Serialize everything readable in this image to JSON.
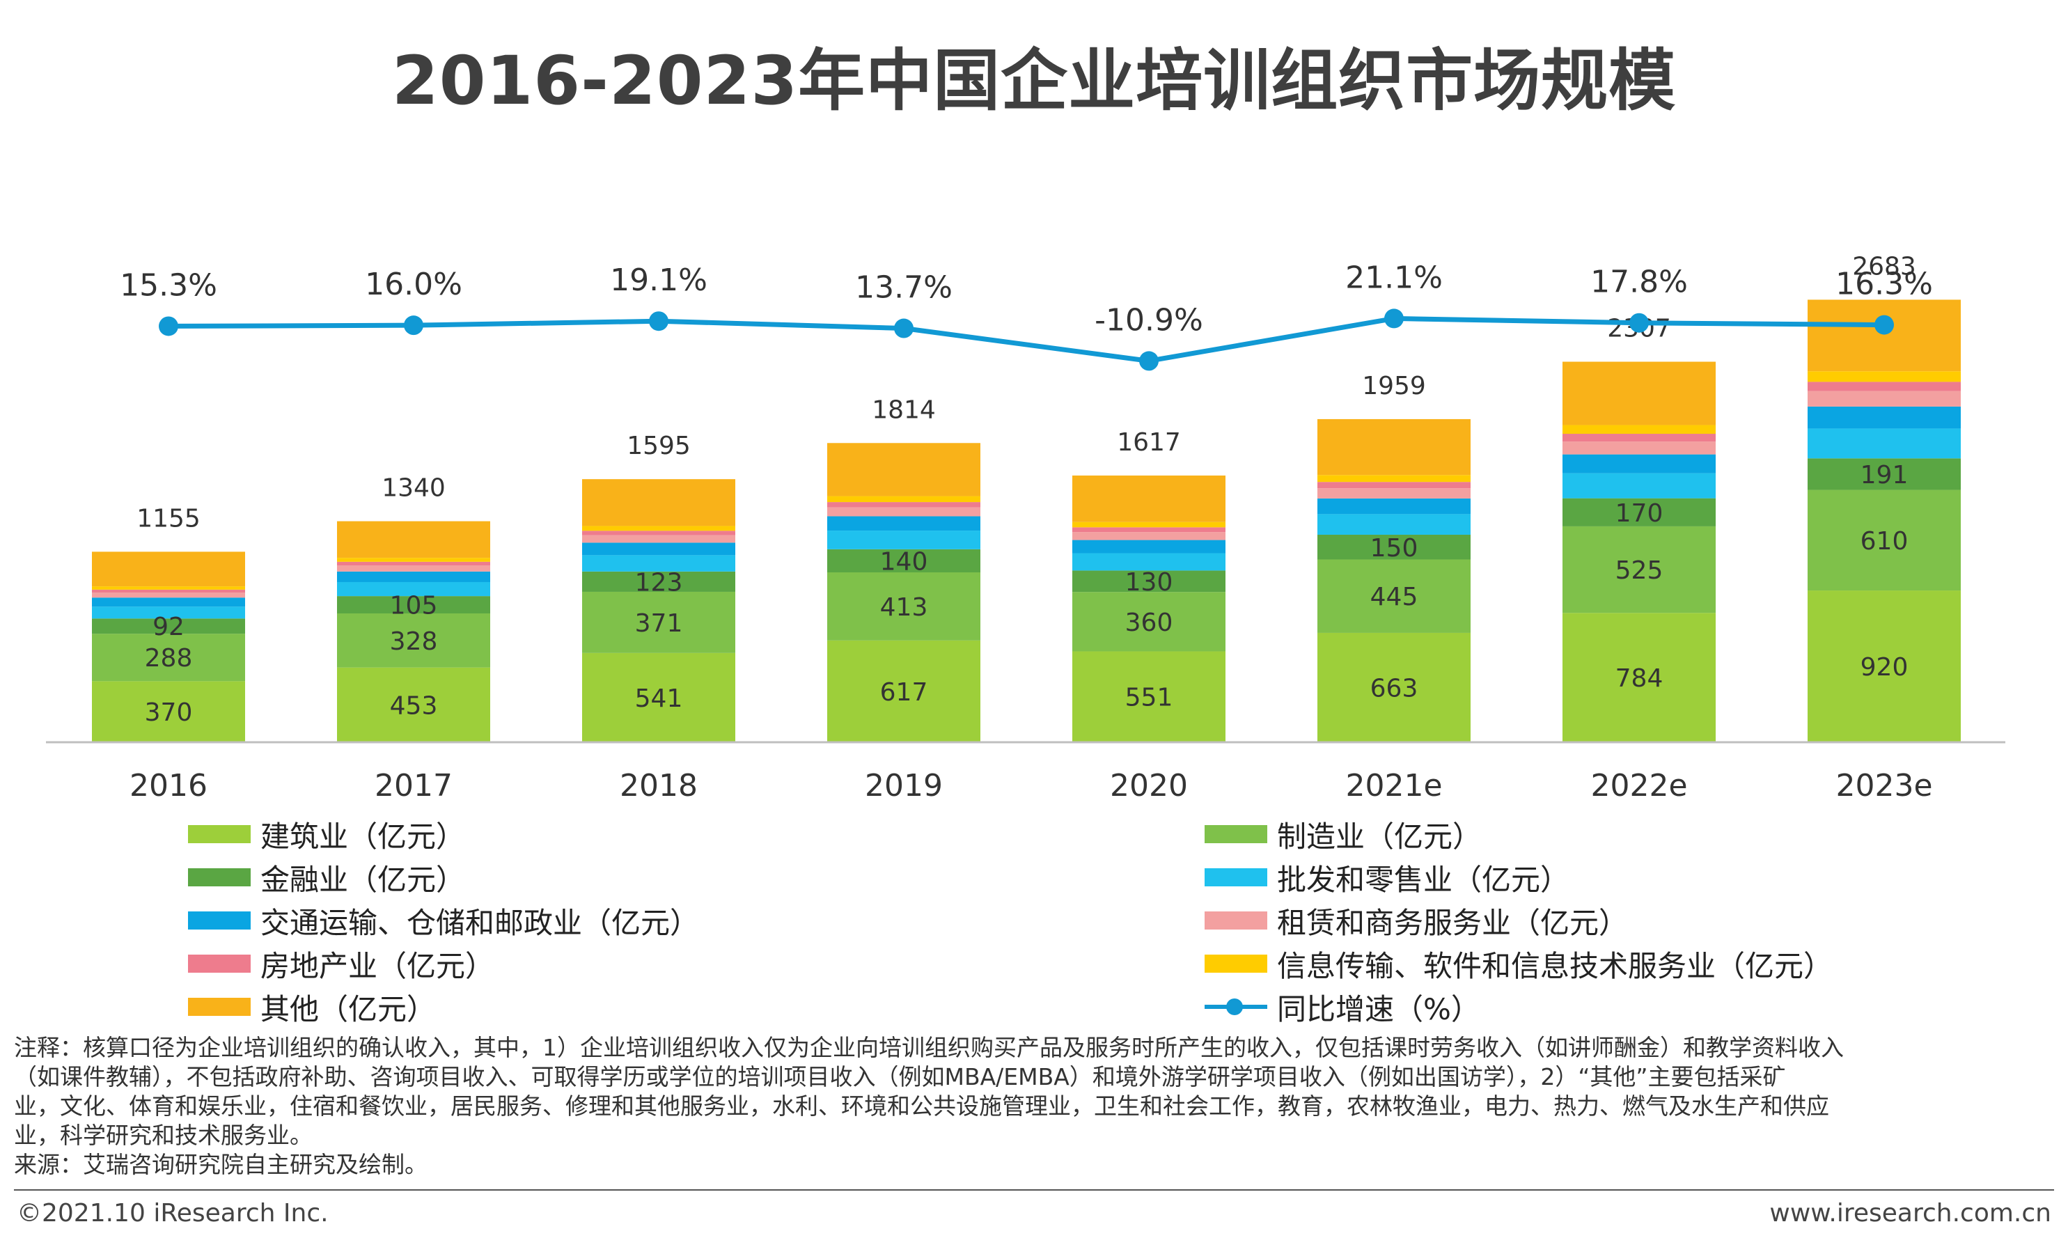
{
  "title": "2016-2023年中国企业培训组织市场规模",
  "chart_data": {
    "type": "stacked-bar-with-line",
    "categories": [
      "2016",
      "2017",
      "2018",
      "2019",
      "2020",
      "2021e",
      "2022e",
      "2023e"
    ],
    "series": [
      {
        "name": "建筑业（亿元）",
        "color": "#9dcf3a",
        "values": [
          370,
          453,
          541,
          617,
          551,
          663,
          784,
          920
        ],
        "labeled": true
      },
      {
        "name": "制造业（亿元）",
        "color": "#7fc14a",
        "values": [
          288,
          328,
          371,
          413,
          360,
          445,
          525,
          610
        ],
        "labeled": true
      },
      {
        "name": "金融业（亿元）",
        "color": "#5aa643",
        "values": [
          92,
          105,
          123,
          140,
          130,
          150,
          170,
          191
        ],
        "labeled": true
      },
      {
        "name": "批发和零售业（亿元）",
        "color": "#1fc1ee",
        "values": [
          72,
          85,
          99,
          113,
          105,
          125,
          152,
          181
        ],
        "labeled": false
      },
      {
        "name": "交通运输、仓储和邮政业（亿元）",
        "color": "#0aa5e2",
        "values": [
          55,
          64,
          76,
          87,
          80,
          95,
          114,
          133
        ],
        "labeled": false
      },
      {
        "name": "租赁和商务服务业（亿元）",
        "color": "#f3a0a0",
        "values": [
          30,
          37,
          45,
          54,
          48,
          62,
          78,
          94
        ],
        "labeled": false
      },
      {
        "name": "房地产业（亿元）",
        "color": "#ee7c8d",
        "values": [
          18,
          22,
          27,
          32,
          29,
          38,
          47,
          56
        ],
        "labeled": false
      },
      {
        "name": "信息传输、软件和信息技术服务业（亿元）",
        "color": "#ffcc00",
        "values": [
          20,
          24,
          29,
          36,
          32,
          42,
          53,
          64
        ],
        "labeled": false
      },
      {
        "name": "其他（亿元）",
        "color": "#f9b219",
        "values": [
          210,
          222,
          284,
          322,
          282,
          339,
          384,
          434
        ],
        "labeled": false
      }
    ],
    "totals": [
      1155,
      1340,
      1595,
      1814,
      1617,
      1959,
      2307,
      2683
    ],
    "growth": {
      "name": "同比增速（%）",
      "color": "#1199d4",
      "values": [
        15.3,
        16.0,
        19.1,
        13.7,
        -10.9,
        21.1,
        17.8,
        16.3
      ],
      "labels": [
        "15.3%",
        "16.0%",
        "19.1%",
        "13.7%",
        "-10.9%",
        "21.1%",
        "17.8%",
        "16.3%"
      ]
    },
    "bar_ylim": [
      0,
      4500
    ],
    "line_ylim": [
      -80,
      25
    ],
    "legend_position": "bottom"
  },
  "notes": [
    "注释：核算口径为企业培训组织的确认收入，其中，1）企业培训组织收入仅为企业向培训组织购买产品及服务时所产生的收入，仅包括课时劳务收入（如讲师酬金）和教学资料收入",
    "（如课件教辅），不包括政府补助、咨询项目收入、可取得学历或学位的培训项目收入（例如MBA/EMBA）和境外游学研学项目收入（例如出国访学），2）“其他”主要包括采矿",
    "业，文化、体育和娱乐业，住宿和餐饮业，居民服务、修理和其他服务业，水利、环境和公共设施管理业，卫生和社会工作，教育，农林牧渔业，电力、热力、燃气及水生产和供应",
    "业，科学研究和技术服务业。",
    "来源：艾瑞咨询研究院自主研究及绘制。"
  ],
  "footer": {
    "copyright": "©2021.10 iResearch Inc.",
    "website": "www.iresearch.com.cn"
  }
}
